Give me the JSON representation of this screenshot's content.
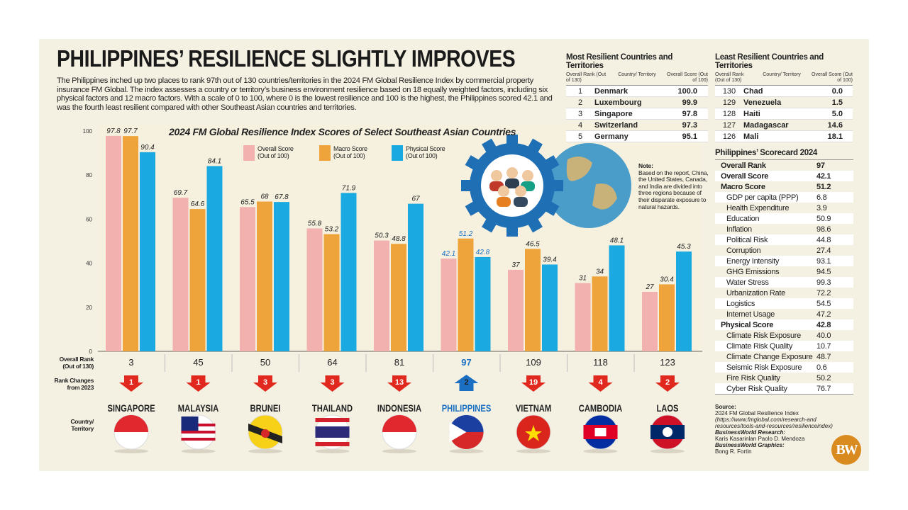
{
  "header": {
    "title": "PHILIPPINES’ RESILIENCE SLIGHTLY IMPROVES",
    "intro": "The Philippines inched up two places to rank 97th out of 130 countries/territories in the 2024 FM Global Resilience Index by commercial property insurance FM Global. The index assesses a country or territory’s business environment resilience based on 18 equally weighted factors, including six physical factors and 12 macro factors. With a scale of 0 to 100, where 0 is the lowest resilience and 100 is the highest, the Philippines scored 42.1 and was the fourth least resilient compared with other Southeast Asian countries and territories."
  },
  "chart_data": {
    "type": "bar",
    "title": "2024 FM Global Resilience Index Scores of Select Southeast Asian Countries",
    "categories": [
      "SINGAPORE",
      "MALAYSIA",
      "BRUNEI",
      "THAILAND",
      "INDONESIA",
      "PHILIPPINES",
      "VIETNAM",
      "CAMBODIA",
      "LAOS"
    ],
    "series": [
      {
        "name": "Overall Score (Out of 100)",
        "color": "#f2b0ae",
        "values": [
          97.8,
          69.7,
          65.5,
          55.8,
          50.3,
          42.1,
          37.0,
          31.0,
          27.0
        ]
      },
      {
        "name": "Macro Score (Out of 100)",
        "color": "#eea43a",
        "values": [
          97.7,
          64.6,
          68.0,
          53.2,
          48.8,
          51.2,
          46.5,
          34.0,
          30.4
        ]
      },
      {
        "name": "Physical Score (Out of 100)",
        "color": "#1aa9e0",
        "values": [
          90.4,
          84.1,
          67.8,
          71.9,
          67.0,
          42.8,
          39.4,
          48.1,
          45.3
        ]
      }
    ],
    "ylim": [
      0,
      100
    ],
    "yticks": [
      0,
      20,
      40,
      60,
      80,
      100
    ],
    "grid": false,
    "legend": "top",
    "highlight": "PHILIPPINES",
    "highlight_color": "#1b6fc2",
    "overall_rank_label": "Overall Rank (Out of 130)",
    "overall_rank": [
      3,
      45,
      50,
      64,
      81,
      97,
      109,
      118,
      123
    ],
    "rank_change_label": "Rank Changes from 2023",
    "rank_change": [
      1,
      1,
      3,
      3,
      13,
      2,
      19,
      4,
      2
    ],
    "rank_change_direction": [
      "down",
      "down",
      "down",
      "down",
      "down",
      "up",
      "down",
      "down",
      "down"
    ],
    "country_label": "Country/ Territory"
  },
  "legend_labels": [
    [
      "Overall Score",
      "(Out of 100)"
    ],
    [
      "Macro Score",
      "(Out of 100)"
    ],
    [
      "Physical Score",
      "(Out of 100)"
    ]
  ],
  "most": {
    "title": "Most Resilient Countries and Territories",
    "headers": [
      "Overall Rank (Out of 130)",
      "Country/ Territory",
      "Overall Score (Out of 100)"
    ],
    "rows": [
      [
        "1",
        "Denmark",
        "100.0"
      ],
      [
        "2",
        "Luxembourg",
        "99.9"
      ],
      [
        "3",
        "Singapore",
        "97.8"
      ],
      [
        "4",
        "Switzerland",
        "97.3"
      ],
      [
        "5",
        "Germany",
        "95.1"
      ]
    ]
  },
  "least": {
    "title": "Least Resilient Countries and Territories",
    "headers": [
      "Overall Rank (Out of 130)",
      "Country/ Territory",
      "Overall Score (Out of 100)"
    ],
    "rows": [
      [
        "130",
        "Chad",
        "0.0"
      ],
      [
        "129",
        "Venezuela",
        "1.5"
      ],
      [
        "128",
        "Haiti",
        "5.0"
      ],
      [
        "127",
        "Madagascar",
        "14.6"
      ],
      [
        "126",
        "Mali",
        "18.1"
      ]
    ]
  },
  "scorecard": {
    "title": "Philippines’ Scorecard 2024",
    "rows": [
      [
        "Overall Rank",
        "97",
        "b"
      ],
      [
        "Overall Score",
        "42.1",
        "b"
      ],
      [
        "Macro Score",
        "51.2",
        "b"
      ],
      [
        "GDP per capita (PPP)",
        "6.8",
        "i"
      ],
      [
        "Health Expenditure",
        "3.9",
        "i"
      ],
      [
        "Education",
        "50.9",
        "i"
      ],
      [
        "Inflation",
        "98.6",
        "i"
      ],
      [
        "Political Risk",
        "44.8",
        "i"
      ],
      [
        "Corruption",
        "27.4",
        "i"
      ],
      [
        "Energy Intensity",
        "93.1",
        "i"
      ],
      [
        "GHG Emissions",
        "94.5",
        "i"
      ],
      [
        "Water Stress",
        "99.3",
        "i"
      ],
      [
        "Urbanization Rate",
        "72.2",
        "i"
      ],
      [
        "Logistics",
        "54.5",
        "i"
      ],
      [
        "Internet Usage",
        "47.2",
        "i"
      ],
      [
        "Physical Score",
        "42.8",
        "b"
      ],
      [
        "Climate Risk Exposure",
        "40.0",
        "i"
      ],
      [
        "Climate Risk Quality",
        "10.7",
        "i"
      ],
      [
        "Climate Change Exposure",
        "48.7",
        "i"
      ],
      [
        "Seismic Risk Exposure",
        "0.6",
        "i"
      ],
      [
        "Fire Risk Quality",
        "50.2",
        "i"
      ],
      [
        "Cyber Risk Quality",
        "76.7",
        "i"
      ]
    ]
  },
  "note": {
    "title": "Note:",
    "text": "Based on the report, China, the United States, Canada, and India are divided into three regions because of their disparate exposure to natural hazards."
  },
  "source": {
    "label": "Source:",
    "name": "2024 FM Global Resilience Index",
    "url": "(https://www.fmglobal.com/research-and resources/tools-and-resources/resilienceindex)",
    "research_label": "BusinessWorld Research:",
    "research": "Karis Kasarinlan Paolo D. Mendoza",
    "graphics_label": "BusinessWorld Graphics:",
    "graphics": "Bong R. Fortin"
  },
  "logo": "BW"
}
